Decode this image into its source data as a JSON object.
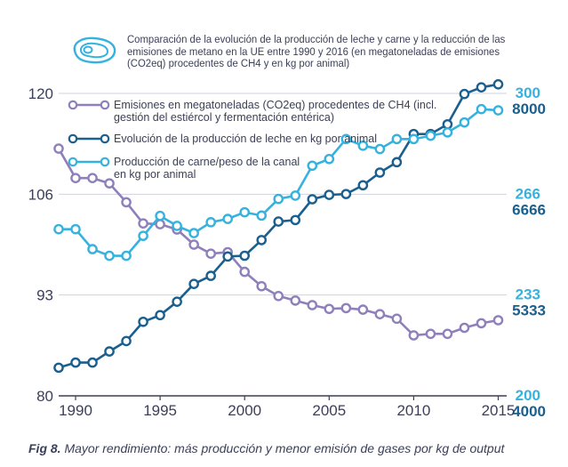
{
  "header": {
    "icon": "meat-steak-icon",
    "title": "Comparación de la evolución de la producción de leche y carne y la reducción de las emisiones de metano en la UE entre 1990 y 2016 (en megatoneladas de emisiones (CO2eq) procedentes de CH4 y en kg por animal)"
  },
  "caption": {
    "prefix": "Fig 8.",
    "text": " Mayor rendimiento: más producción y menor emisión de gases por kg de output"
  },
  "chart_data": {
    "type": "line",
    "x": [
      1989,
      1990,
      1991,
      1992,
      1993,
      1994,
      1995,
      1996,
      1997,
      1998,
      1999,
      2000,
      2001,
      2002,
      2003,
      2004,
      2005,
      2006,
      2007,
      2008,
      2009,
      2010,
      2011,
      2012,
      2013,
      2014,
      2015
    ],
    "xticks": [
      "1990",
      "1995",
      "2000",
      "2005",
      "2010",
      "2015"
    ],
    "xlim": [
      1989,
      2015.5
    ],
    "left_axis": {
      "ticks": [
        "120",
        "106",
        "93",
        "80"
      ],
      "ylim": [
        80,
        120
      ],
      "color": "#3b3f57"
    },
    "right_axis_meat": {
      "ticks": [
        "300",
        "266",
        "233",
        "200"
      ],
      "ylim": [
        200,
        300
      ],
      "color": "#35b2dd"
    },
    "right_axis_milk": {
      "ticks": [
        "8000",
        "6666",
        "5333",
        "4000"
      ],
      "ylim": [
        4000,
        8000
      ],
      "color": "#1a5f8e"
    },
    "series": [
      {
        "name": "Emisiones en megatoneladas (CO2eq) procedentes de CH4 (incl. gestión del estiércol y fermentación entérica)",
        "axis": "left",
        "color": "#8f7fbb",
        "values": [
          112.7,
          108.8,
          108.8,
          108.1,
          105.6,
          102.8,
          102.7,
          102.0,
          100.0,
          98.8,
          99.0,
          96.4,
          94.5,
          93.2,
          92.6,
          92.0,
          91.5,
          91.6,
          91.4,
          90.8,
          90.2,
          88.0,
          88.2,
          88.2,
          89.0,
          89.6,
          90.0
        ]
      },
      {
        "name": "Evolución de la producción de leche en kg por animal",
        "axis": "right_milk",
        "color": "#1a5f8e",
        "values": [
          4372,
          4440,
          4440,
          4587,
          4724,
          4979,
          5067,
          5245,
          5480,
          5587,
          5843,
          5853,
          6060,
          6305,
          6325,
          6600,
          6658,
          6669,
          6785,
          6953,
          7090,
          7463,
          7463,
          7591,
          7992,
          8080,
          8120
        ]
      },
      {
        "name": "Producción de carne/peso de la canal en kg por animal",
        "axis": "right_meat",
        "color": "#35b2dd",
        "values": [
          255.1,
          255.1,
          248.5,
          246.3,
          246.3,
          252.9,
          259.5,
          256.2,
          253.8,
          257.4,
          258.5,
          260.7,
          259.6,
          265.1,
          266.2,
          276.1,
          278.3,
          284.9,
          282.7,
          281.6,
          284.9,
          284.9,
          286.0,
          287.1,
          290.4,
          294.8,
          294.4
        ]
      }
    ]
  }
}
